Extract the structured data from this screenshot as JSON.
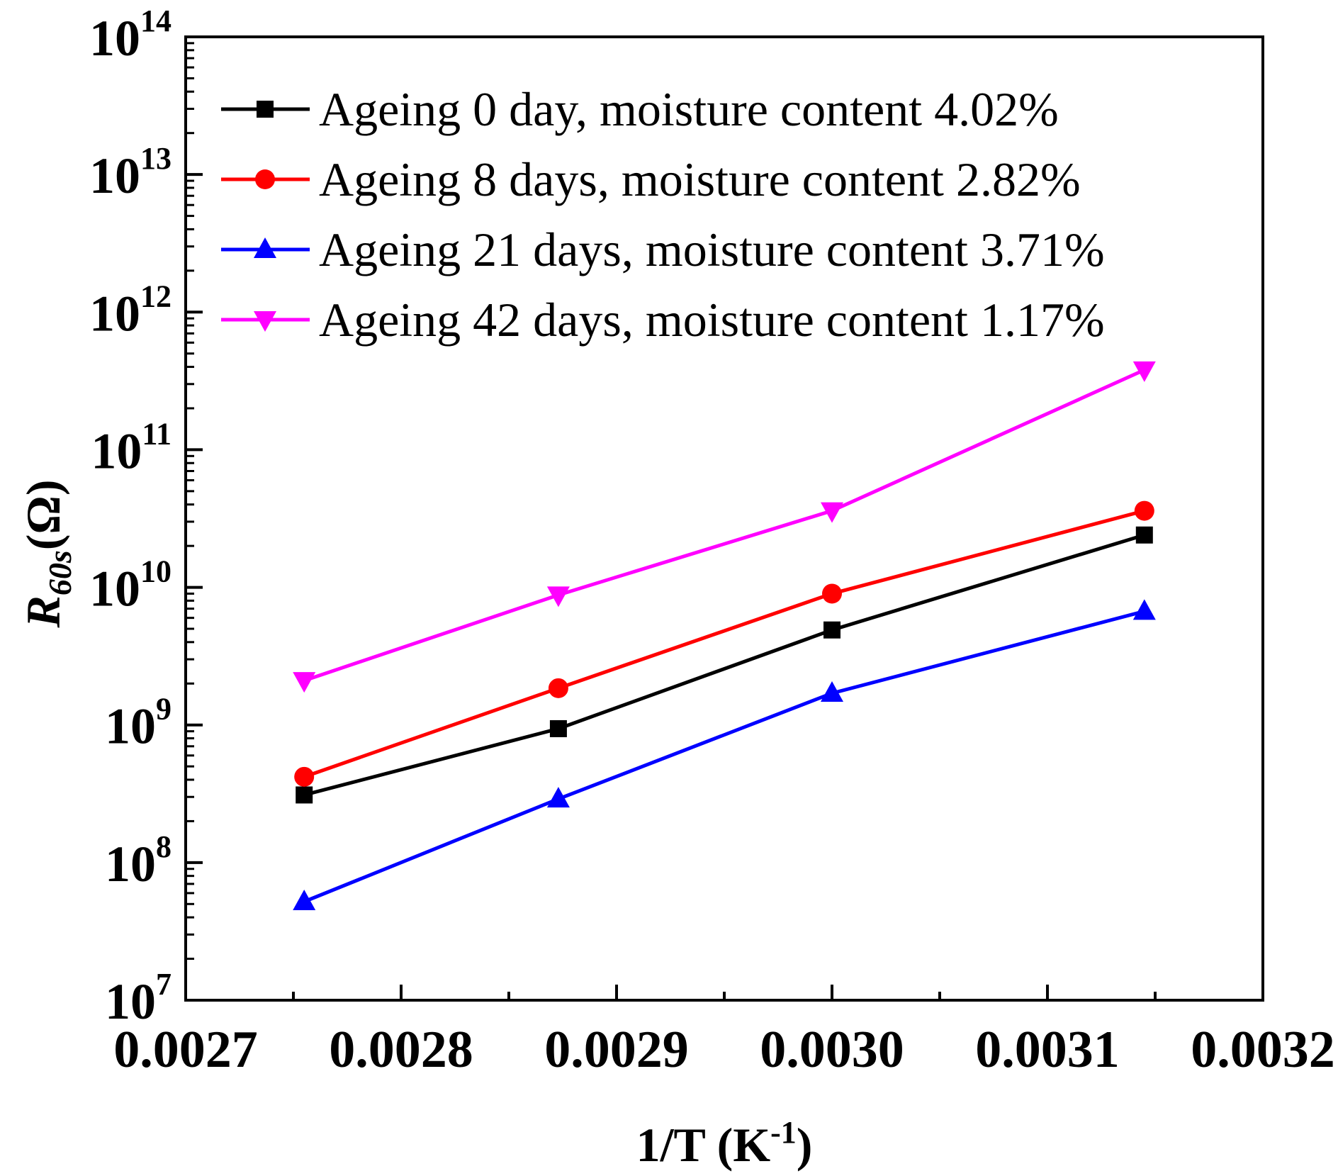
{
  "chart_data": {
    "type": "line",
    "x_scale": "linear",
    "y_scale": "log",
    "xlim": [
      0.0027,
      0.0032
    ],
    "ylim": [
      10000000,
      100000000000000
    ],
    "x_ticks": [
      "0.0027",
      "0.0028",
      "0.0029",
      "0.0030",
      "0.0031",
      "0.0032"
    ],
    "y_ticks": [
      {
        "base": "10",
        "exp": "7",
        "value": 10000000
      },
      {
        "base": "10",
        "exp": "8",
        "value": 100000000
      },
      {
        "base": "10",
        "exp": "9",
        "value": 1000000000
      },
      {
        "base": "10",
        "exp": "10",
        "value": 10000000000
      },
      {
        "base": "10",
        "exp": "11",
        "value": 100000000000
      },
      {
        "base": "10",
        "exp": "12",
        "value": 1000000000000
      },
      {
        "base": "10",
        "exp": "13",
        "value": 10000000000000
      },
      {
        "base": "10",
        "exp": "14",
        "value": 100000000000000
      }
    ],
    "xlabel": {
      "main": "1/T (K",
      "sup": "-1",
      "close": ")"
    },
    "ylabel": {
      "main": "R",
      "sub": "60s",
      "unit": "(Ω)"
    },
    "legend_position": "top-left",
    "grid": false,
    "x": [
      0.002755,
      0.002873,
      0.003,
      0.003145
    ],
    "series": [
      {
        "name": "Ageing 0 day, moisture content 4.02%",
        "color": "#000000",
        "marker": "square",
        "values": [
          310000000,
          940000000,
          4900000000,
          24000000000
        ]
      },
      {
        "name": "Ageing 8 days, moisture content 2.82%",
        "color": "#ff0000",
        "marker": "circle",
        "values": [
          420000000,
          1850000000,
          9000000000,
          36000000000
        ]
      },
      {
        "name": "Ageing 21 days, moisture content 3.71%",
        "color": "#0000ff",
        "marker": "triangle-up",
        "values": [
          52000000,
          290000000,
          1700000000,
          6700000000
        ]
      },
      {
        "name": "Ageing 42 days, moisture content 1.17%",
        "color": "#ff00ff",
        "marker": "triangle-down",
        "values": [
          2100000000,
          8800000000,
          36000000000,
          380000000000
        ]
      }
    ]
  }
}
